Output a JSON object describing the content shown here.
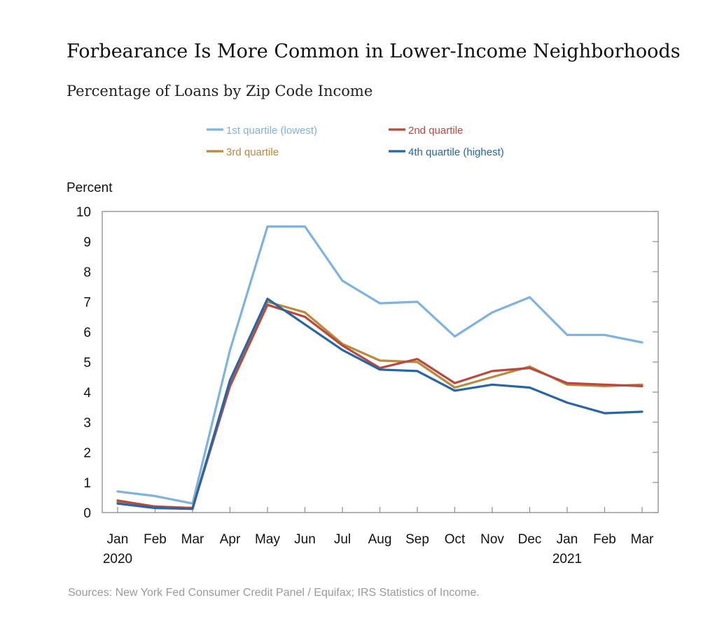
{
  "chart_data": {
    "type": "line",
    "title": "Forbearance Is More Common in Lower-Income Neighborhoods",
    "subtitle": "Percentage of Loans by Zip Code Income",
    "ylabel": "Percent",
    "xlabel": "",
    "ylim": [
      0,
      10
    ],
    "yticks": [
      0,
      1,
      2,
      3,
      4,
      5,
      6,
      7,
      8,
      9,
      10
    ],
    "grid": false,
    "legend_position": "top",
    "categories": [
      "Jan",
      "Feb",
      "Mar",
      "Apr",
      "May",
      "Jun",
      "Jul",
      "Aug",
      "Sep",
      "Oct",
      "Nov",
      "Dec",
      "Jan",
      "Feb",
      "Mar"
    ],
    "year_labels": [
      {
        "index": 0,
        "label": "2020"
      },
      {
        "index": 12,
        "label": "2021"
      }
    ],
    "series": [
      {
        "name": "1st quartile (lowest)",
        "color": "#7fb2dd",
        "values": [
          0.7,
          0.55,
          0.3,
          5.4,
          9.5,
          9.5,
          7.7,
          6.95,
          7.0,
          5.85,
          6.65,
          7.15,
          5.9,
          5.9,
          5.65
        ]
      },
      {
        "name": "2nd quartile",
        "color": "#b64a3f",
        "values": [
          0.4,
          0.2,
          0.15,
          4.2,
          6.9,
          6.5,
          5.55,
          4.8,
          5.1,
          4.3,
          4.7,
          4.8,
          4.3,
          4.25,
          4.2
        ]
      },
      {
        "name": "3rd quartile",
        "color": "#b88a3e",
        "values": [
          0.35,
          0.2,
          0.15,
          4.3,
          7.0,
          6.65,
          5.6,
          5.05,
          5.0,
          4.15,
          4.5,
          4.85,
          4.25,
          4.2,
          4.25
        ]
      },
      {
        "name": "4th quartile (highest)",
        "color": "#2765a3",
        "values": [
          0.3,
          0.15,
          0.12,
          4.4,
          7.1,
          6.25,
          5.4,
          4.75,
          4.7,
          4.05,
          4.25,
          4.15,
          3.65,
          3.3,
          3.35
        ]
      }
    ],
    "source": "Sources:  New York Fed Consumer Credit Panel / Equifax; IRS Statistics of Income."
  }
}
